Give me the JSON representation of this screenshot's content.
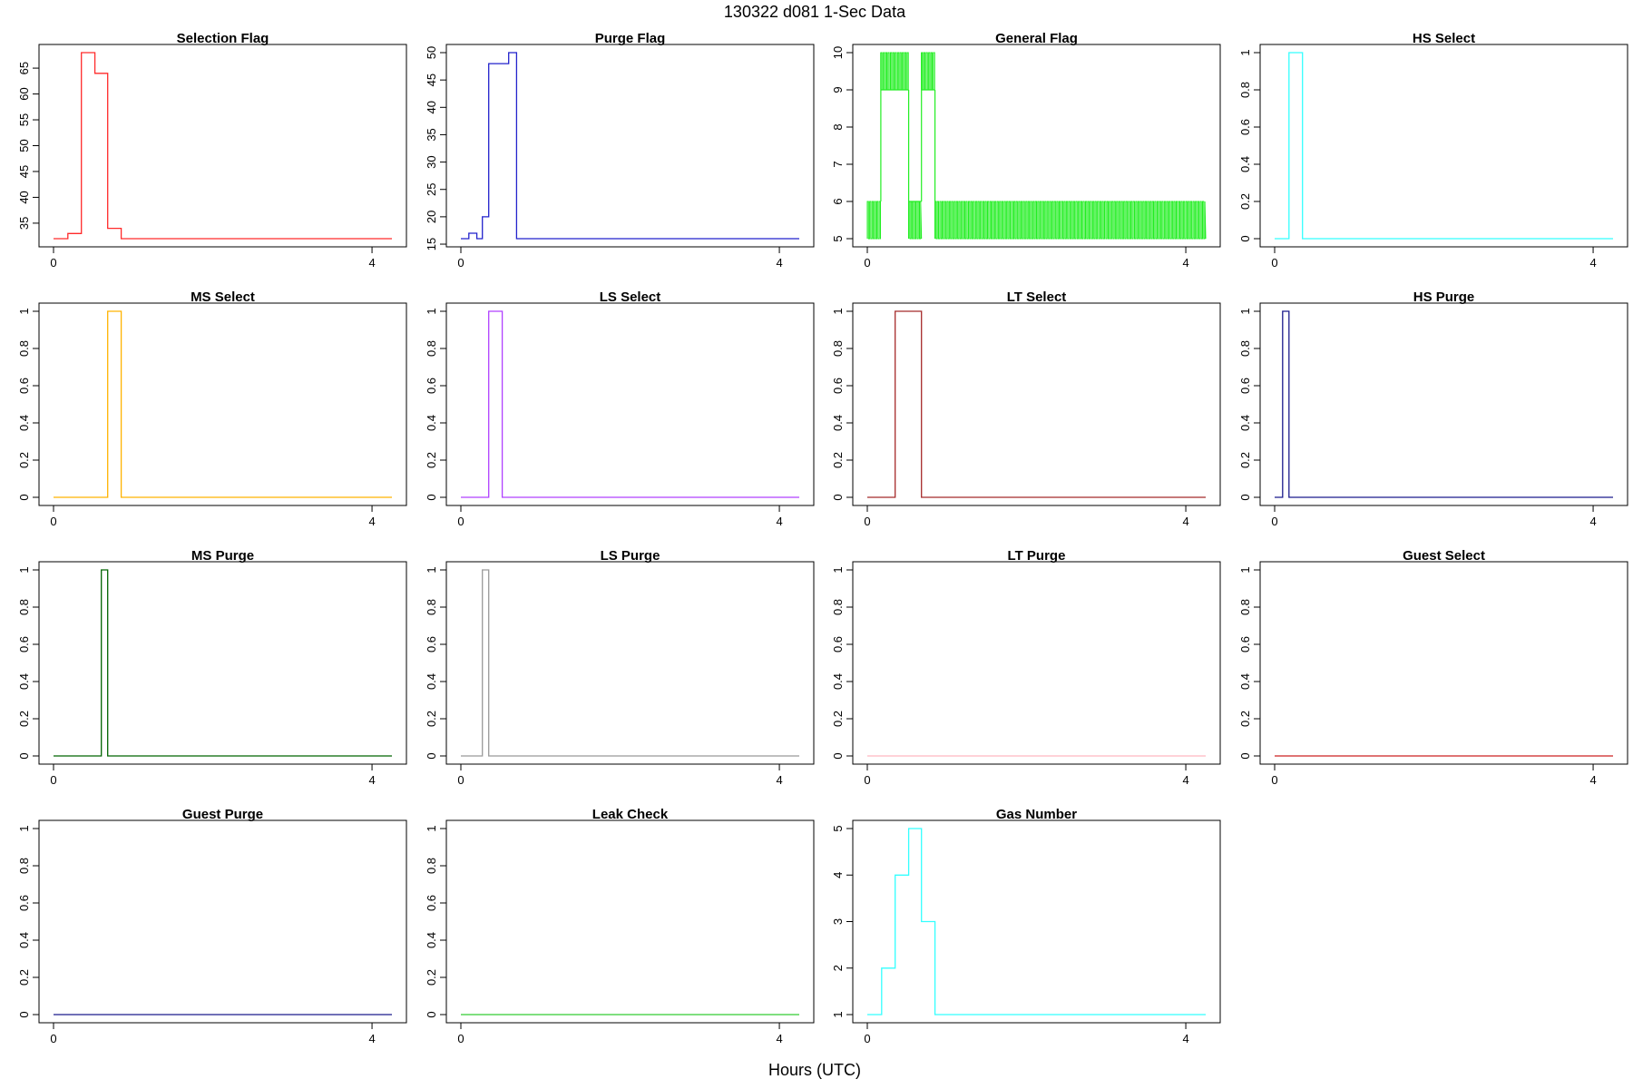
{
  "figure": {
    "title": "130322   d081   1-Sec Data",
    "xlabel": "Hours (UTC)"
  },
  "chart_data": [
    {
      "type": "line",
      "title": "Selection Flag",
      "color": "#ff2a2a",
      "ylim": [
        32,
        68
      ],
      "yticks": [
        35,
        40,
        45,
        50,
        55,
        60,
        65
      ],
      "xticks": [
        0,
        4
      ],
      "xlim": [
        0,
        4.25
      ],
      "x": [
        0,
        0.18,
        0.35,
        0.52,
        0.68,
        0.85,
        4.25
      ],
      "y": [
        32,
        33,
        68,
        64,
        34,
        32,
        32
      ]
    },
    {
      "type": "line",
      "title": "Purge Flag",
      "color": "#2222cc",
      "ylim": [
        16,
        50
      ],
      "yticks": [
        15,
        20,
        25,
        30,
        35,
        40,
        45,
        50
      ],
      "xticks": [
        0,
        4
      ],
      "xlim": [
        0,
        4.25
      ],
      "x": [
        0,
        0.1,
        0.2,
        0.27,
        0.35,
        0.6,
        0.7,
        4.25
      ],
      "y": [
        16,
        17,
        16,
        20,
        48,
        50,
        16,
        16
      ]
    },
    {
      "type": "line",
      "title": "General Flag",
      "color": "#22ee22",
      "ylim": [
        5,
        10
      ],
      "yticks": [
        5,
        6,
        7,
        8,
        9,
        10
      ],
      "xticks": [
        0,
        4
      ],
      "xlim": [
        0,
        4.25
      ],
      "segments": [
        {
          "x0": 0,
          "x1": 0.17,
          "lo": 5,
          "hi": 6
        },
        {
          "x0": 0.17,
          "x1": 0.52,
          "lo": 9,
          "hi": 10
        },
        {
          "x0": 0.52,
          "x1": 0.68,
          "lo": 5,
          "hi": 6
        },
        {
          "x0": 0.68,
          "x1": 0.85,
          "lo": 9,
          "hi": 10
        },
        {
          "x0": 0.85,
          "x1": 4.25,
          "lo": 5,
          "hi": 6
        }
      ],
      "baseline": [
        {
          "x0": 0.17,
          "x1": 0.52,
          "y": 9
        },
        {
          "x0": 0.68,
          "x1": 0.85,
          "y": 9
        },
        {
          "x0": 0.52,
          "x1": 0.68,
          "y": 6
        }
      ]
    },
    {
      "type": "line",
      "title": "HS Select",
      "color": "#33ffff",
      "ylim": [
        0,
        1
      ],
      "yticks": [
        0,
        0.2,
        0.4,
        0.6,
        0.8,
        1
      ],
      "xticks": [
        0,
        4
      ],
      "xlim": [
        0,
        4.25
      ],
      "x": [
        0,
        0.18,
        0.35,
        4.25
      ],
      "y": [
        0,
        1,
        0,
        0
      ]
    },
    {
      "type": "line",
      "title": "MS Select",
      "color": "#ffb300",
      "ylim": [
        0,
        1
      ],
      "yticks": [
        0,
        0.2,
        0.4,
        0.6,
        0.8,
        1
      ],
      "xticks": [
        0,
        4
      ],
      "xlim": [
        0,
        4.25
      ],
      "x": [
        0,
        0.68,
        0.85,
        4.25
      ],
      "y": [
        0,
        1,
        0,
        0
      ]
    },
    {
      "type": "line",
      "title": "LS Select",
      "color": "#b040ff",
      "ylim": [
        0,
        1
      ],
      "yticks": [
        0,
        0.2,
        0.4,
        0.6,
        0.8,
        1
      ],
      "xticks": [
        0,
        4
      ],
      "xlim": [
        0,
        4.25
      ],
      "x": [
        0,
        0.35,
        0.52,
        4.25
      ],
      "y": [
        0,
        1,
        0,
        0
      ]
    },
    {
      "type": "line",
      "title": "LT Select",
      "color": "#a52a2a",
      "ylim": [
        0,
        1
      ],
      "yticks": [
        0,
        0.2,
        0.4,
        0.6,
        0.8,
        1
      ],
      "xticks": [
        0,
        4
      ],
      "xlim": [
        0,
        4.25
      ],
      "x": [
        0,
        0.35,
        0.68,
        4.25
      ],
      "y": [
        0,
        1,
        0,
        0
      ]
    },
    {
      "type": "line",
      "title": "HS Purge",
      "color": "#1a1a8c",
      "ylim": [
        0,
        1
      ],
      "yticks": [
        0,
        0.2,
        0.4,
        0.6,
        0.8,
        1
      ],
      "xticks": [
        0,
        4
      ],
      "xlim": [
        0,
        4.25
      ],
      "x": [
        0,
        0.1,
        0.18,
        4.25
      ],
      "y": [
        0,
        1,
        0,
        0
      ]
    },
    {
      "type": "line",
      "title": "MS Purge",
      "color": "#006400",
      "ylim": [
        0,
        1
      ],
      "yticks": [
        0,
        0.2,
        0.4,
        0.6,
        0.8,
        1
      ],
      "xticks": [
        0,
        4
      ],
      "xlim": [
        0,
        4.25
      ],
      "x": [
        0,
        0.6,
        0.68,
        4.25
      ],
      "y": [
        0,
        1,
        0,
        0
      ]
    },
    {
      "type": "line",
      "title": "LS Purge",
      "color": "#999999",
      "ylim": [
        0,
        1
      ],
      "yticks": [
        0,
        0.2,
        0.4,
        0.6,
        0.8,
        1
      ],
      "xticks": [
        0,
        4
      ],
      "xlim": [
        0,
        4.25
      ],
      "x": [
        0,
        0.27,
        0.35,
        4.25
      ],
      "y": [
        0,
        1,
        0,
        0
      ]
    },
    {
      "type": "line",
      "title": "LT Purge",
      "color": "#ffb6c1",
      "ylim": [
        0,
        1
      ],
      "yticks": [
        0,
        0.2,
        0.4,
        0.6,
        0.8,
        1
      ],
      "xticks": [
        0,
        4
      ],
      "xlim": [
        0,
        4.25
      ],
      "x": [
        0,
        4.25
      ],
      "y": [
        0,
        0
      ]
    },
    {
      "type": "line",
      "title": "Guest Select",
      "color": "#cc2222",
      "ylim": [
        0,
        1
      ],
      "yticks": [
        0,
        0.2,
        0.4,
        0.6,
        0.8,
        1
      ],
      "xticks": [
        0,
        4
      ],
      "xlim": [
        0,
        4.25
      ],
      "x": [
        0,
        4.25
      ],
      "y": [
        0,
        0
      ]
    },
    {
      "type": "line",
      "title": "Guest Purge",
      "color": "#1a1a8c",
      "ylim": [
        0,
        1
      ],
      "yticks": [
        0,
        0.2,
        0.4,
        0.6,
        0.8,
        1
      ],
      "xticks": [
        0,
        4
      ],
      "xlim": [
        0,
        4.25
      ],
      "x": [
        0,
        4.25
      ],
      "y": [
        0,
        0
      ]
    },
    {
      "type": "line",
      "title": "Leak Check",
      "color": "#33cc33",
      "ylim": [
        0,
        1
      ],
      "yticks": [
        0,
        0.2,
        0.4,
        0.6,
        0.8,
        1
      ],
      "xticks": [
        0,
        4
      ],
      "xlim": [
        0,
        4.25
      ],
      "x": [
        0,
        4.25
      ],
      "y": [
        0,
        0
      ]
    },
    {
      "type": "line",
      "title": "Gas Number",
      "color": "#33ffff",
      "ylim": [
        1,
        5
      ],
      "yticks": [
        1,
        2,
        3,
        4,
        5
      ],
      "xticks": [
        0,
        4
      ],
      "xlim": [
        0,
        4.25
      ],
      "x": [
        0,
        0.18,
        0.35,
        0.52,
        0.68,
        0.85,
        4.25
      ],
      "y": [
        1,
        2,
        4,
        5,
        3,
        1,
        1
      ]
    }
  ]
}
